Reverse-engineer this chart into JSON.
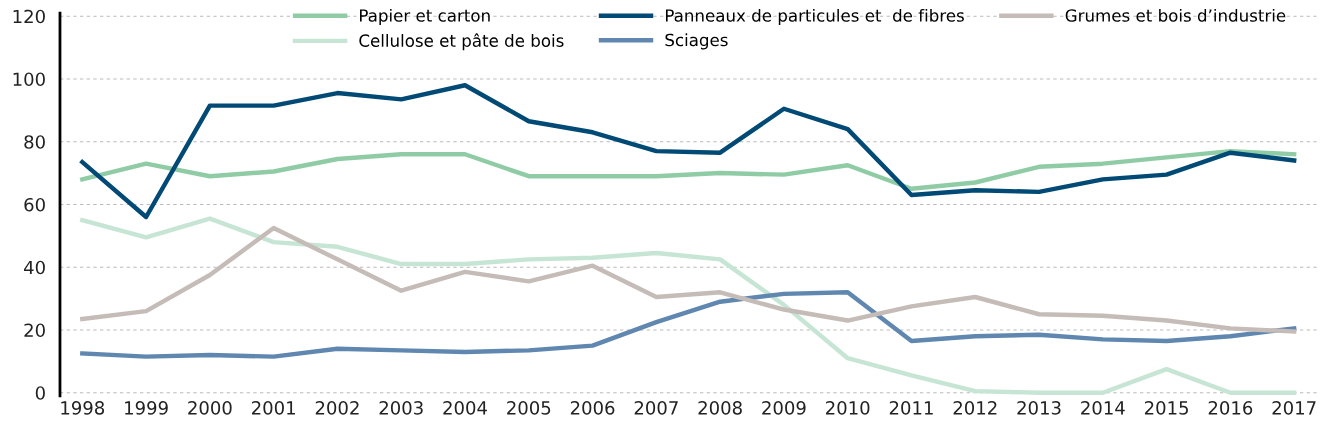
{
  "chart_data": {
    "type": "line",
    "categories": [
      "1998",
      "1999",
      "2000",
      "2001",
      "2002",
      "2003",
      "2004",
      "2005",
      "2006",
      "2007",
      "2008",
      "2009",
      "2010",
      "2011",
      "2012",
      "2013",
      "2014",
      "2015",
      "2016",
      "2017"
    ],
    "series": [
      {
        "name": "Papier et carton",
        "color": "#8fcca6",
        "values": [
          68,
          73,
          69,
          70.5,
          74.5,
          76,
          76,
          69,
          69,
          69,
          70,
          69.5,
          72.5,
          65,
          67,
          72,
          73,
          75,
          77,
          76
        ]
      },
      {
        "name": "Cellulose et pâte de bois",
        "color": "#c6e5d4",
        "values": [
          55,
          49.5,
          55.5,
          48,
          46.5,
          41,
          41,
          42.5,
          43,
          44.5,
          42.5,
          28,
          11,
          5.5,
          0.5,
          0,
          0,
          7.5,
          0,
          0
        ]
      },
      {
        "name": "Panneaux de particules et  de fibres",
        "color": "#004a75",
        "values": [
          73.5,
          56,
          91.5,
          91.5,
          95.5,
          93.5,
          98,
          86.5,
          83,
          77,
          76.5,
          90.5,
          84,
          63,
          64.5,
          64,
          68,
          69.5,
          76.5,
          74
        ]
      },
      {
        "name": "Sciages",
        "color": "#5f87b0",
        "values": [
          12.5,
          11.5,
          12,
          11.5,
          14,
          13.5,
          13,
          13.5,
          15,
          22.5,
          29,
          31.5,
          32,
          16.5,
          18,
          18.5,
          17,
          16.5,
          18,
          20.5
        ]
      },
      {
        "name": "Grumes et bois d’industrie",
        "color": "#c5bcb8",
        "values": [
          23.5,
          26,
          37.5,
          52.5,
          42.5,
          32.5,
          38.5,
          35.5,
          40.5,
          30.5,
          32,
          26.5,
          23,
          27.5,
          30.5,
          25,
          24.5,
          23,
          20.5,
          19.5
        ]
      }
    ],
    "ylim": [
      -1,
      121
    ],
    "yticks": [
      0,
      20,
      40,
      60,
      80,
      100,
      120
    ],
    "grid": "y",
    "legend": "top",
    "line_style": "solid",
    "marker": "none"
  }
}
